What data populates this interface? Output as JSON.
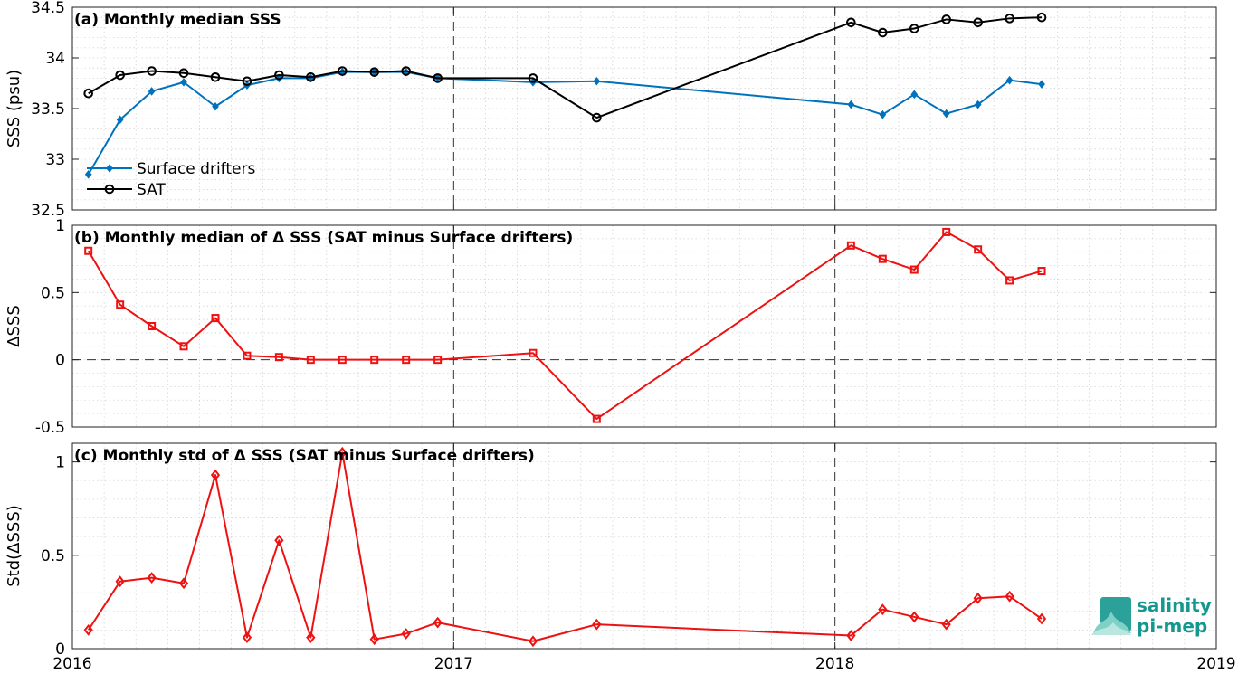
{
  "colors": {
    "drifters": "#0072BD",
    "sat": "#000000",
    "delta": "#EE1111",
    "logo": "#15978f"
  },
  "logo": {
    "line1": "salinity",
    "line2": "pi-mep"
  },
  "chart_data": [
    {
      "type": "line",
      "title": "(a) Monthly median SSS",
      "xlabel": "",
      "ylabel": "SSS (psu)",
      "xlim": [
        2016,
        2019
      ],
      "ylim": [
        32.5,
        34.5
      ],
      "yticks": [
        32.5,
        33,
        33.5,
        34,
        34.5
      ],
      "yticklabels": [
        "32.5",
        "33",
        "33.5",
        "34",
        "34.5"
      ],
      "grid": true,
      "legend_position": "bottom-left",
      "series": [
        {
          "name": "Surface drifters",
          "marker": "diamond",
          "x": [
            2016.042,
            2016.125,
            2016.208,
            2016.292,
            2016.375,
            2016.458,
            2016.542,
            2016.625,
            2016.708,
            2016.792,
            2016.875,
            2016.958,
            2017.208,
            2017.375,
            2018.042,
            2018.125,
            2018.208,
            2018.292,
            2018.375,
            2018.458,
            2018.542
          ],
          "values": [
            32.85,
            33.39,
            33.67,
            33.76,
            33.52,
            33.73,
            33.8,
            33.8,
            33.86,
            33.86,
            33.86,
            33.8,
            33.76,
            33.77,
            33.54,
            33.44,
            33.64,
            33.45,
            33.54,
            33.78,
            33.74
          ]
        },
        {
          "name": "SAT",
          "marker": "circle",
          "x": [
            2016.042,
            2016.125,
            2016.208,
            2016.292,
            2016.375,
            2016.458,
            2016.542,
            2016.625,
            2016.708,
            2016.792,
            2016.875,
            2016.958,
            2017.208,
            2017.375,
            2018.042,
            2018.125,
            2018.208,
            2018.292,
            2018.375,
            2018.458,
            2018.542
          ],
          "values": [
            33.65,
            33.83,
            33.87,
            33.85,
            33.81,
            33.77,
            33.83,
            33.81,
            33.87,
            33.86,
            33.87,
            33.8,
            33.8,
            33.41,
            34.35,
            34.25,
            34.29,
            34.38,
            34.35,
            34.39,
            34.4
          ]
        }
      ]
    },
    {
      "type": "line",
      "title": "(b) Monthly median of Δ SSS (SAT minus Surface drifters)",
      "xlabel": "",
      "ylabel": "ΔSSS",
      "xlim": [
        2016,
        2019
      ],
      "ylim": [
        -0.5,
        1
      ],
      "yticks": [
        -0.5,
        0,
        0.5,
        1
      ],
      "yticklabels": [
        "-0.5",
        "0",
        "0.5",
        "1"
      ],
      "grid": true,
      "series": [
        {
          "marker": "square",
          "x": [
            2016.042,
            2016.125,
            2016.208,
            2016.292,
            2016.375,
            2016.458,
            2016.542,
            2016.625,
            2016.708,
            2016.792,
            2016.875,
            2016.958,
            2017.208,
            2017.375,
            2018.042,
            2018.125,
            2018.208,
            2018.292,
            2018.375,
            2018.458,
            2018.542
          ],
          "values": [
            0.81,
            0.41,
            0.25,
            0.1,
            0.31,
            0.03,
            0.02,
            0.0,
            0.0,
            0.0,
            0.0,
            0.0,
            0.05,
            -0.44,
            0.85,
            0.75,
            0.67,
            0.95,
            0.82,
            0.59,
            0.66
          ]
        }
      ]
    },
    {
      "type": "line",
      "title": "(c) Monthly std of Δ SSS (SAT minus Surface drifters)",
      "xlabel": "",
      "ylabel": "Std(ΔSSS)",
      "xlim": [
        2016,
        2019
      ],
      "ylim": [
        0,
        1.1
      ],
      "yticks": [
        0,
        0.5,
        1
      ],
      "yticklabels": [
        "0",
        "0.5",
        "1"
      ],
      "xticks": [
        2016,
        2017,
        2018,
        2019
      ],
      "xticklabels": [
        "2016",
        "2017",
        "2018",
        "2019"
      ],
      "grid": true,
      "series": [
        {
          "marker": "diamond",
          "x": [
            2016.042,
            2016.125,
            2016.208,
            2016.292,
            2016.375,
            2016.458,
            2016.542,
            2016.625,
            2016.708,
            2016.792,
            2016.875,
            2016.958,
            2017.208,
            2017.375,
            2018.042,
            2018.125,
            2018.208,
            2018.292,
            2018.375,
            2018.458,
            2018.542
          ],
          "values": [
            0.1,
            0.36,
            0.38,
            0.35,
            0.93,
            0.06,
            0.58,
            0.06,
            1.05,
            0.05,
            0.08,
            0.14,
            0.04,
            0.13,
            0.07,
            0.21,
            0.17,
            0.13,
            0.27,
            0.28,
            0.16
          ]
        }
      ]
    }
  ]
}
